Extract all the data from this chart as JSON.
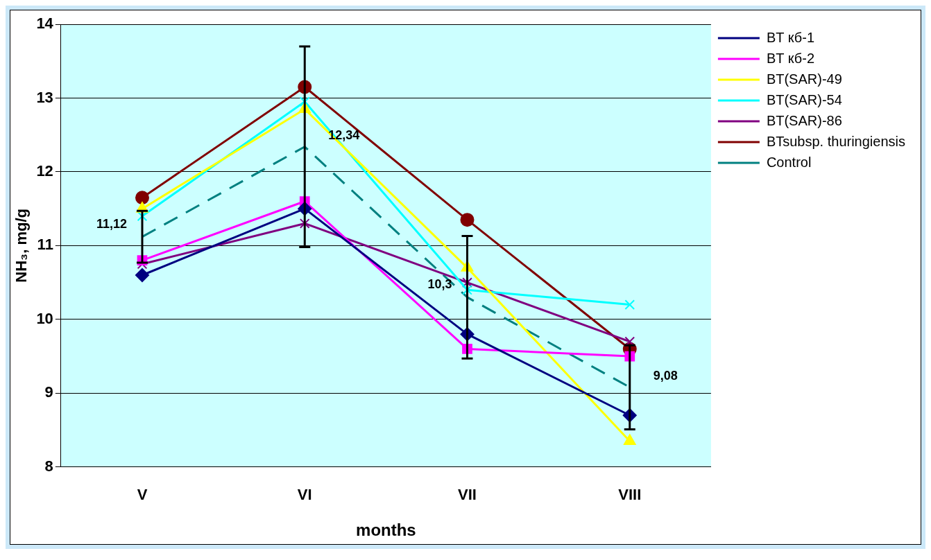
{
  "chart_data": {
    "type": "line",
    "xlabel": "months",
    "ylabel": "NH₃, mg/g",
    "categories": [
      "V",
      "VI",
      "VII",
      "VIII"
    ],
    "ylim": [
      8,
      14
    ],
    "yticks": [
      8,
      9,
      10,
      11,
      12,
      13,
      14
    ],
    "grid": "y",
    "legend": "top right",
    "series": [
      {
        "name": "BT кб-1",
        "color": "#000080",
        "marker": "diamond",
        "values": [
          10.6,
          11.5,
          9.8,
          8.7
        ]
      },
      {
        "name": "BT кб-2",
        "color": "#ff00ff",
        "marker": "square",
        "values": [
          10.8,
          11.6,
          9.6,
          9.5
        ]
      },
      {
        "name": "BT(SAR)-49",
        "color": "#ffff00",
        "marker": "triangle",
        "values": [
          11.5,
          12.85,
          10.7,
          8.35
        ]
      },
      {
        "name": "BT(SAR)-54",
        "color": "#00ffff",
        "marker": "cross",
        "values": [
          11.4,
          12.95,
          10.4,
          10.2
        ]
      },
      {
        "name": "BT(SAR)-86",
        "color": "#800080",
        "marker": "cross",
        "values": [
          10.75,
          11.3,
          10.5,
          9.7
        ]
      },
      {
        "name": "BTsubsp. thuringiensis",
        "color": "#800000",
        "marker": "circle",
        "values": [
          11.65,
          13.15,
          11.35,
          9.6
        ]
      },
      {
        "name": "Control",
        "color": "#008080",
        "marker": "none",
        "line_style": "dashed",
        "values": [
          11.12,
          12.34,
          10.3,
          9.08
        ],
        "errors": [
          0.35,
          1.36,
          0.83,
          0.57
        ],
        "value_labels": [
          "11,12",
          "12,34",
          "10,3",
          "9,08"
        ]
      }
    ]
  }
}
